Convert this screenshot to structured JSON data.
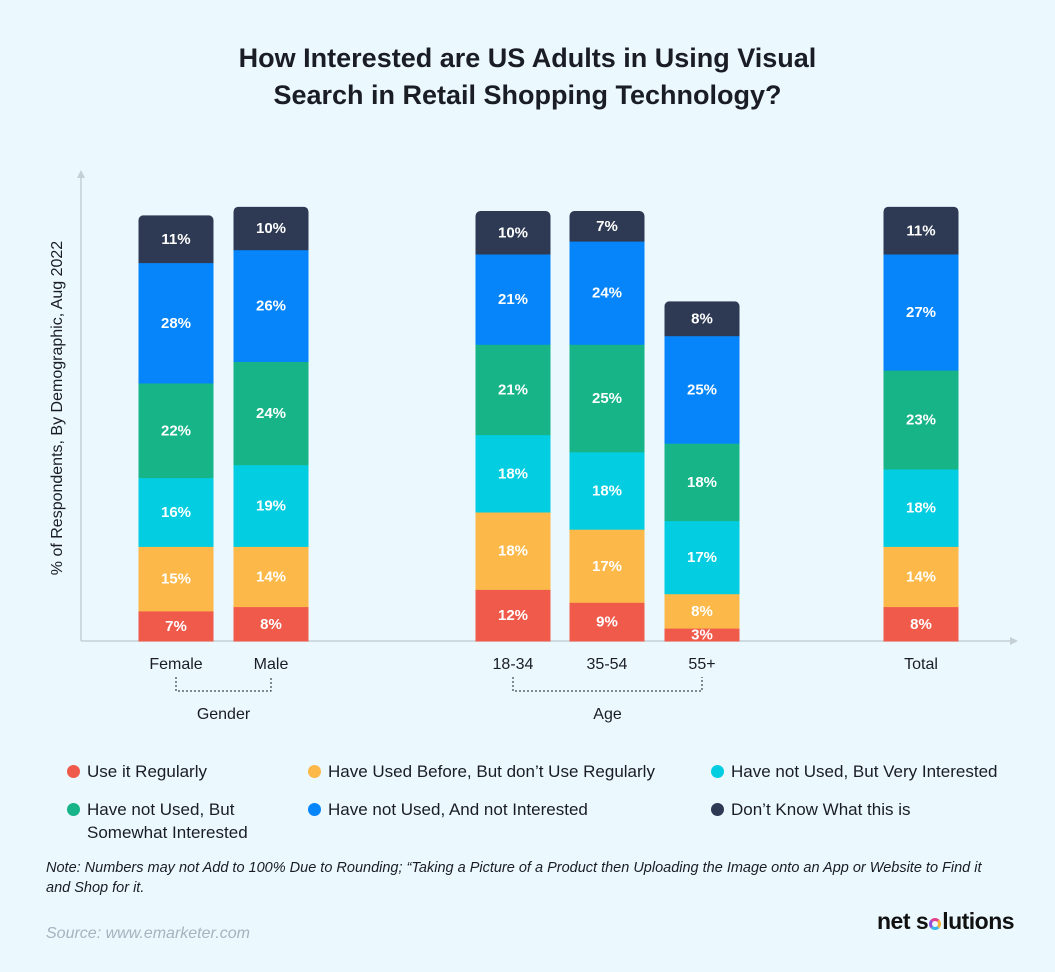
{
  "title_line1": "How Interested are US Adults in Using Visual",
  "title_line2": "Search in Retail Shopping Technology?",
  "chart_data": {
    "type": "bar",
    "stacked": true,
    "title": "How Interested are US Adults in Using Visual Search in Retail Shopping Technology?",
    "ylabel": "% of Respondents, By Demographic, Aug 2022",
    "xlabel": "",
    "categories": [
      "Female",
      "Male",
      "18-34",
      "35-54",
      "55+",
      "Total"
    ],
    "groups": [
      {
        "label": "Gender",
        "categories": [
          "Female",
          "Male"
        ]
      },
      {
        "label": "Age",
        "categories": [
          "18-34",
          "35-54",
          "55+"
        ]
      }
    ],
    "ylim": [
      0,
      100
    ],
    "grid": false,
    "legend_position": "bottom",
    "series": [
      {
        "name": "Use it Regularly",
        "color": "#f05a4b",
        "values": [
          7,
          8,
          12,
          9,
          3,
          8
        ]
      },
      {
        "name": "Have Used Before, But don't Use Regularly",
        "color": "#fcb94a",
        "values": [
          15,
          14,
          18,
          17,
          8,
          14
        ]
      },
      {
        "name": "Have not Used, But Very Interested",
        "color": "#03cde0",
        "values": [
          16,
          19,
          18,
          18,
          17,
          18
        ]
      },
      {
        "name": "Have not Used, But Somewhat Interested",
        "color": "#17b488",
        "values": [
          22,
          24,
          21,
          25,
          18,
          23
        ]
      },
      {
        "name": "Have not Used, And not Interested",
        "color": "#0685fa",
        "values": [
          28,
          26,
          21,
          24,
          25,
          27
        ]
      },
      {
        "name": "Don't Know What this is",
        "color": "#2e3a53",
        "values": [
          11,
          10,
          10,
          7,
          8,
          11
        ]
      }
    ]
  },
  "legend": {
    "items": [
      {
        "label": "Use it Regularly",
        "color": "#f05a4b"
      },
      {
        "label": "Have Used Before, But don’t Use Regularly",
        "color": "#fcb94a"
      },
      {
        "label": "Have not Used, But Very Interested",
        "color": "#03cde0"
      },
      {
        "label_line1": "Have not Used, But",
        "label_line2": "Somewhat Interested",
        "color": "#17b488"
      },
      {
        "label": "Have not Used, And not Interested",
        "color": "#0685fa"
      },
      {
        "label": "Don’t Know What this is",
        "color": "#2e3a53"
      }
    ]
  },
  "note": "Note: Numbers may not Add to 100% Due to Rounding; “Taking a Picture of a Product then Uploading the Image onto an App or Website to Find it and Shop for it.",
  "source": "Source: www.emarketer.com",
  "brand": {
    "part1": "net s",
    "part2": "lutions"
  }
}
